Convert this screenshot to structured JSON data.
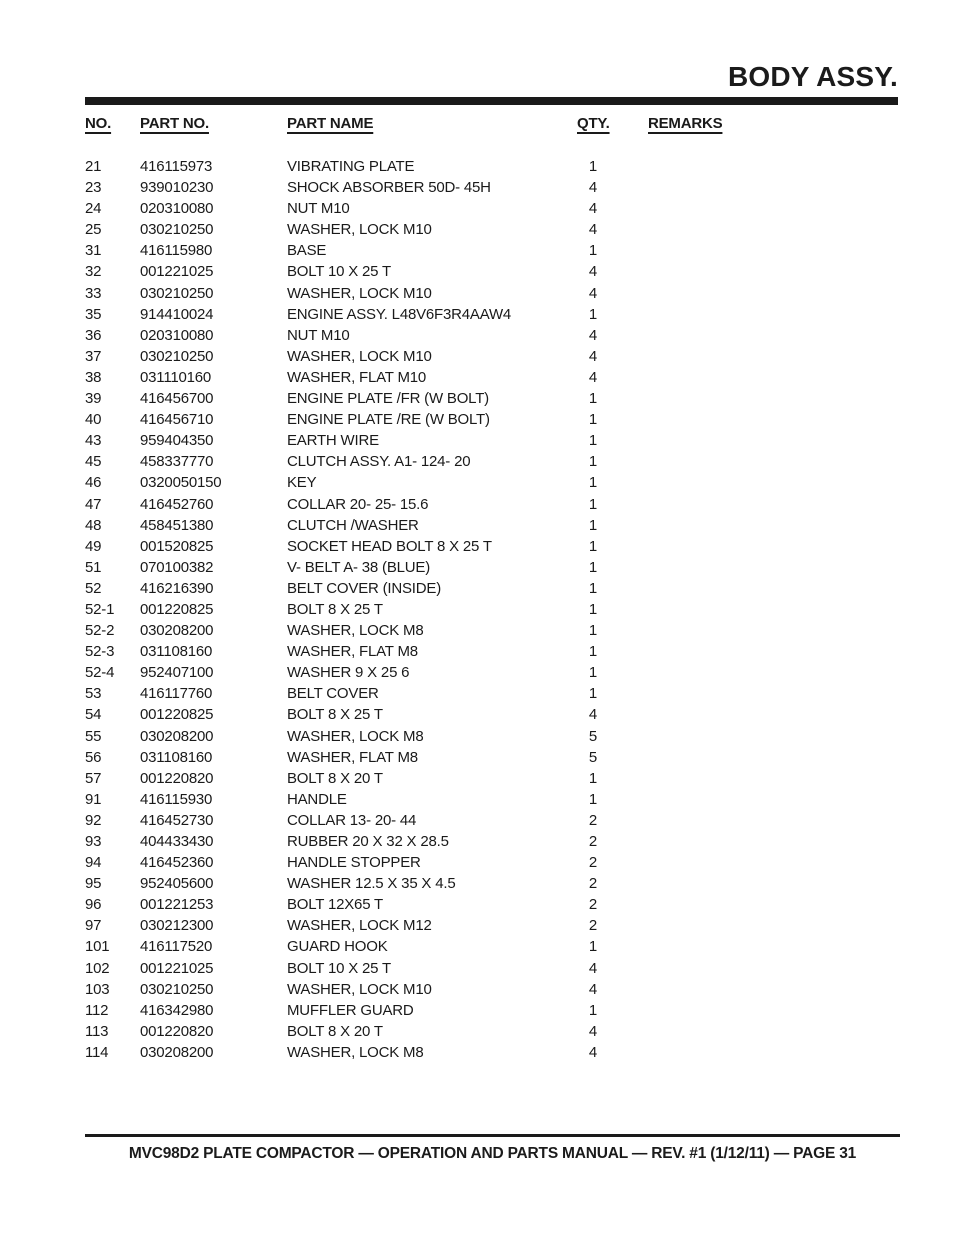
{
  "page": {
    "title": "BODY ASSY.",
    "footer": "MVC98D2 PLATE COMPACTOR — OPERATION AND PARTS MANUAL — REV. #1 (1/12/11) — PAGE 31"
  },
  "colors": {
    "text": "#1a1a1a",
    "background": "#ffffff"
  },
  "table": {
    "columns": [
      {
        "label": "NO."
      },
      {
        "label": "PART NO."
      },
      {
        "label": "PART NAME"
      },
      {
        "label": "QTY."
      },
      {
        "label": "REMARKS"
      }
    ],
    "rows": [
      {
        "no": "21",
        "part_no": "416115973",
        "part_name": "VIBRATING PLATE",
        "qty": "1",
        "remarks": ""
      },
      {
        "no": "23",
        "part_no": "939010230",
        "part_name": "SHOCK ABSORBER 50D- 45H",
        "qty": "4",
        "remarks": ""
      },
      {
        "no": "24",
        "part_no": "020310080",
        "part_name": "NUT M10",
        "qty": "4",
        "remarks": ""
      },
      {
        "no": "25",
        "part_no": "030210250",
        "part_name": "WASHER, LOCK M10",
        "qty": "4",
        "remarks": ""
      },
      {
        "no": "31",
        "part_no": "416115980",
        "part_name": "BASE",
        "qty": "1",
        "remarks": ""
      },
      {
        "no": "32",
        "part_no": "001221025",
        "part_name": "BOLT 10 X 25 T",
        "qty": "4",
        "remarks": ""
      },
      {
        "no": "33",
        "part_no": "030210250",
        "part_name": "WASHER, LOCK M10",
        "qty": "4",
        "remarks": ""
      },
      {
        "no": "35",
        "part_no": "914410024",
        "part_name": "ENGINE ASSY. L48V6F3R4AAW4",
        "qty": "1",
        "remarks": ""
      },
      {
        "no": "36",
        "part_no": "020310080",
        "part_name": "NUT M10",
        "qty": "4",
        "remarks": ""
      },
      {
        "no": "37",
        "part_no": "030210250",
        "part_name": "WASHER, LOCK M10",
        "qty": "4",
        "remarks": ""
      },
      {
        "no": "38",
        "part_no": "031110160",
        "part_name": "WASHER, FLAT M10",
        "qty": "4",
        "remarks": ""
      },
      {
        "no": "39",
        "part_no": "416456700",
        "part_name": "ENGINE PLATE /FR (W BOLT)",
        "qty": "1",
        "remarks": ""
      },
      {
        "no": "40",
        "part_no": "416456710",
        "part_name": "ENGINE PLATE /RE (W BOLT)",
        "qty": "1",
        "remarks": ""
      },
      {
        "no": "43",
        "part_no": "959404350",
        "part_name": "EARTH WIRE",
        "qty": "1",
        "remarks": ""
      },
      {
        "no": "45",
        "part_no": "458337770",
        "part_name": "CLUTCH ASSY. A1- 124- 20",
        "qty": "1",
        "remarks": ""
      },
      {
        "no": "46",
        "part_no": "0320050150",
        "part_name": "KEY",
        "qty": "1",
        "remarks": ""
      },
      {
        "no": "47",
        "part_no": "416452760",
        "part_name": "COLLAR 20- 25- 15.6",
        "qty": "1",
        "remarks": ""
      },
      {
        "no": "48",
        "part_no": "458451380",
        "part_name": "CLUTCH /WASHER",
        "qty": "1",
        "remarks": ""
      },
      {
        "no": "49",
        "part_no": "001520825",
        "part_name": "SOCKET HEAD BOLT 8 X 25 T",
        "qty": "1",
        "remarks": ""
      },
      {
        "no": "51",
        "part_no": "070100382",
        "part_name": "V- BELT A- 38 (BLUE)",
        "qty": "1",
        "remarks": ""
      },
      {
        "no": "52",
        "part_no": "416216390",
        "part_name": "BELT COVER (INSIDE)",
        "qty": "1",
        "remarks": ""
      },
      {
        "no": "52-1",
        "part_no": "001220825",
        "part_name": "BOLT 8 X 25 T",
        "qty": "1",
        "remarks": ""
      },
      {
        "no": "52-2",
        "part_no": "030208200",
        "part_name": "WASHER, LOCK M8",
        "qty": "1",
        "remarks": ""
      },
      {
        "no": "52-3",
        "part_no": "031108160",
        "part_name": "WASHER, FLAT M8",
        "qty": "1",
        "remarks": ""
      },
      {
        "no": "52-4",
        "part_no": "952407100",
        "part_name": "WASHER 9 X 25 6",
        "qty": "1",
        "remarks": ""
      },
      {
        "no": "53",
        "part_no": "416117760",
        "part_name": "BELT COVER",
        "qty": "1",
        "remarks": ""
      },
      {
        "no": "54",
        "part_no": "001220825",
        "part_name": "BOLT 8 X 25 T",
        "qty": "4",
        "remarks": ""
      },
      {
        "no": "55",
        "part_no": "030208200",
        "part_name": "WASHER, LOCK M8",
        "qty": "5",
        "remarks": ""
      },
      {
        "no": "56",
        "part_no": "031108160",
        "part_name": "WASHER, FLAT M8",
        "qty": "5",
        "remarks": ""
      },
      {
        "no": "57",
        "part_no": "001220820",
        "part_name": "BOLT 8 X 20 T",
        "qty": "1",
        "remarks": ""
      },
      {
        "no": "91",
        "part_no": "416115930",
        "part_name": "HANDLE",
        "qty": "1",
        "remarks": ""
      },
      {
        "no": "92",
        "part_no": "416452730",
        "part_name": "COLLAR 13- 20- 44",
        "qty": "2",
        "remarks": ""
      },
      {
        "no": "93",
        "part_no": "404433430",
        "part_name": "RUBBER 20 X 32 X 28.5",
        "qty": "2",
        "remarks": ""
      },
      {
        "no": "94",
        "part_no": "416452360",
        "part_name": "HANDLE STOPPER",
        "qty": "2",
        "remarks": ""
      },
      {
        "no": "95",
        "part_no": "952405600",
        "part_name": "WASHER 12.5 X 35 X 4.5",
        "qty": "2",
        "remarks": ""
      },
      {
        "no": "96",
        "part_no": "001221253",
        "part_name": "BOLT 12X65 T",
        "qty": "2",
        "remarks": ""
      },
      {
        "no": "97",
        "part_no": "030212300",
        "part_name": "WASHER, LOCK M12",
        "qty": "2",
        "remarks": ""
      },
      {
        "no": "101",
        "part_no": "416117520",
        "part_name": "GUARD HOOK",
        "qty": "1",
        "remarks": ""
      },
      {
        "no": "102",
        "part_no": "001221025",
        "part_name": "BOLT 10 X 25 T",
        "qty": "4",
        "remarks": ""
      },
      {
        "no": "103",
        "part_no": "030210250",
        "part_name": "WASHER, LOCK M10",
        "qty": "4",
        "remarks": ""
      },
      {
        "no": "112",
        "part_no": "416342980",
        "part_name": "MUFFLER GUARD",
        "qty": "1",
        "remarks": ""
      },
      {
        "no": "113",
        "part_no": "001220820",
        "part_name": "BOLT 8 X 20 T",
        "qty": "4",
        "remarks": ""
      },
      {
        "no": "114",
        "part_no": "030208200",
        "part_name": "WASHER, LOCK M8",
        "qty": "4",
        "remarks": ""
      }
    ]
  }
}
